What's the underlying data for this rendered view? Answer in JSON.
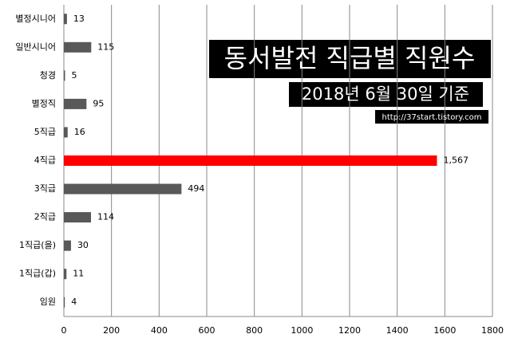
{
  "chart_data": {
    "type": "hbar",
    "title": "동서발전 직급별 직원수",
    "subtitle": "2018년 6월 30일 기준",
    "annotation": "http://37start.tistory.com",
    "categories": [
      "별정시니어",
      "일반시니어",
      "청경",
      "별정직",
      "5직급",
      "4직급",
      "3직급",
      "2직급",
      "1직급(을)",
      "1직급(갑)",
      "임원"
    ],
    "values": [
      13,
      115,
      5,
      95,
      16,
      1567,
      494,
      114,
      30,
      11,
      4
    ],
    "value_labels": [
      "13",
      "115",
      "5",
      "95",
      "16",
      "1,567",
      "494",
      "114",
      "30",
      "11",
      "4"
    ],
    "colors": [
      "#595959",
      "#595959",
      "#595959",
      "#595959",
      "#595959",
      "#ff0000",
      "#595959",
      "#595959",
      "#595959",
      "#595959",
      "#595959"
    ],
    "xlim": [
      0,
      1800
    ],
    "xticks": [
      0,
      200,
      400,
      600,
      800,
      1000,
      1200,
      1400,
      1600,
      1800
    ],
    "grid": true
  }
}
